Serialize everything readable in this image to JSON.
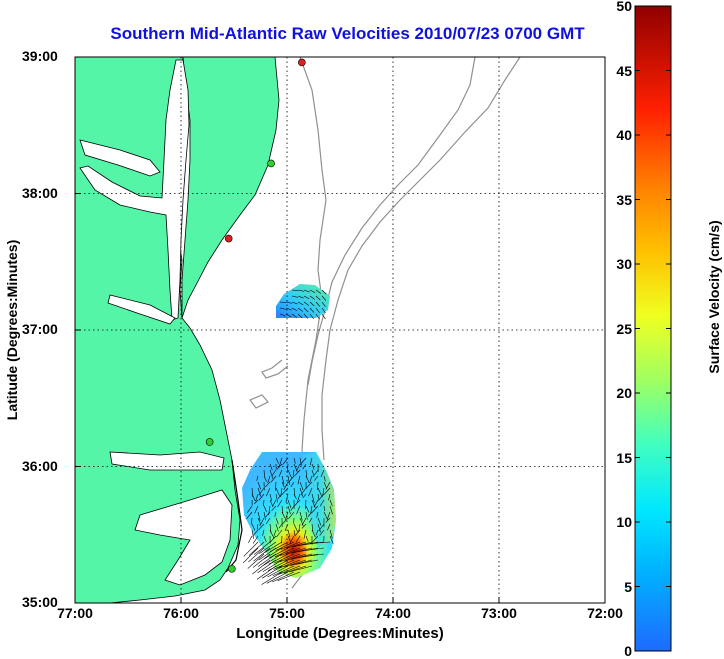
{
  "title": "Southern Mid-Atlantic Raw Velocities 2010/07/23 0700 GMT",
  "xlabel": "Longitude (Degrees:Minutes)",
  "ylabel": "Latitude (Degrees:Minutes)",
  "colorbar": {
    "label": "Surface Velocity (cm/s)",
    "min": 0,
    "max": 50,
    "ticks": [
      "0",
      "5",
      "10",
      "15",
      "20",
      "25",
      "30",
      "35",
      "40",
      "45",
      "50"
    ]
  },
  "x_ticks": [
    "77:00",
    "76:00",
    "75:00",
    "74:00",
    "73:00",
    "72:00"
  ],
  "y_ticks": [
    "39:00",
    "38:00",
    "37:00",
    "36:00",
    "35:00"
  ],
  "map": {
    "lon_range": [
      -77,
      -72
    ],
    "lat_range": [
      35,
      39
    ],
    "land_color": "#55f5a8",
    "bathymetry_color": "#909090",
    "grid": "dotted",
    "stations": [
      {
        "lon": -74.86,
        "lat": 38.96,
        "color": "#e02020"
      },
      {
        "lon": -75.15,
        "lat": 38.22,
        "color": "#30d030"
      },
      {
        "lon": -75.55,
        "lat": 37.67,
        "color": "#e02020"
      },
      {
        "lon": -75.73,
        "lat": 36.18,
        "color": "#30d030"
      },
      {
        "lon": -75.52,
        "lat": 35.25,
        "color": "#30d030"
      }
    ]
  }
}
